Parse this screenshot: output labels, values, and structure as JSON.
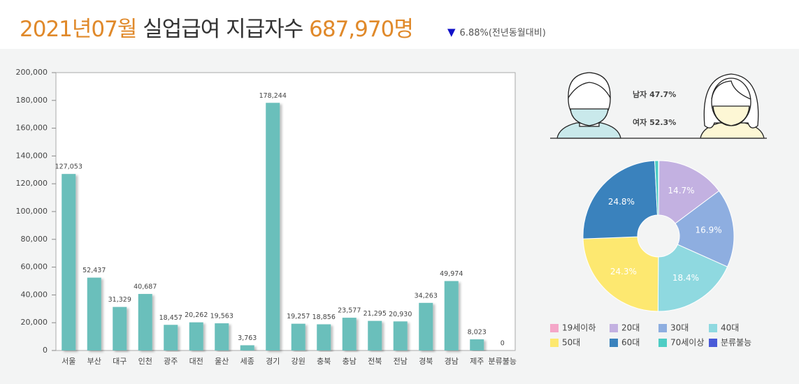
{
  "header": {
    "month": "2021년07월",
    "title": "실업급여 지급자수",
    "total": "687,970명",
    "change": "6.88%",
    "change_note": "(전년동월대비)"
  },
  "gender": {
    "male": "남자 47.7%",
    "female": "여자 52.3%"
  },
  "chart_data": [
    {
      "type": "bar",
      "categories": [
        "서울",
        "부산",
        "대구",
        "인천",
        "광주",
        "대전",
        "울산",
        "세종",
        "경기",
        "강원",
        "충북",
        "충남",
        "전북",
        "전남",
        "경북",
        "경남",
        "제주",
        "분류불능"
      ],
      "values": [
        127053,
        52437,
        31329,
        40687,
        18457,
        20262,
        19563,
        3763,
        178244,
        19257,
        18856,
        23577,
        21295,
        20930,
        34263,
        49974,
        8023,
        0
      ],
      "value_labels": [
        "127,053",
        "52,437",
        "31,329",
        "40,687",
        "18,457",
        "20,262",
        "19,563",
        "3,763",
        "178,244",
        "19,257",
        "18,856",
        "23,577",
        "21,295",
        "20,930",
        "34,263",
        "49,974",
        "8,023",
        "0"
      ],
      "color": "#6bbfbb",
      "ylim": [
        0,
        200000
      ],
      "yticks": [
        0,
        {
          "value": 20000,
          "label": "20,000"
        },
        {
          "value": 40000,
          "label": "40,000"
        },
        {
          "value": 60000,
          "label": "60,000"
        },
        {
          "value": 80000,
          "label": "80,000"
        },
        {
          "value": 100000,
          "label": "100,000"
        },
        {
          "value": 120000,
          "label": "120,000"
        },
        {
          "value": 140000,
          "label": "140,000"
        },
        {
          "value": 160000,
          "label": "160,000"
        },
        {
          "value": 180000,
          "label": "180,000"
        },
        {
          "value": 200000,
          "label": "200,000"
        }
      ]
    },
    {
      "type": "pie",
      "categories": [
        "19세이하",
        "20대",
        "30대",
        "40대",
        "50대",
        "60대",
        "70세이상",
        "분류불능"
      ],
      "values": [
        0.1,
        14.7,
        16.9,
        18.4,
        24.3,
        24.8,
        0.8,
        0
      ],
      "value_labels": [
        null,
        "14.7%",
        "16.9%",
        "18.4%",
        "24.3%",
        "24.8%",
        null,
        null
      ],
      "colors": [
        "#f4a6c8",
        "#c3b1e1",
        "#8eaee0",
        "#8fd9e0",
        "#fde870",
        "#3a82bd",
        "#4ecdc4",
        "#4a5bd8"
      ]
    }
  ]
}
